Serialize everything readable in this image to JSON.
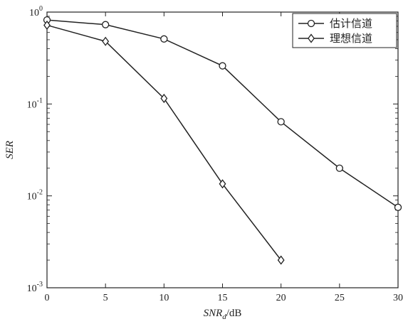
{
  "chart_data": {
    "type": "line",
    "title": "",
    "x_axis": {
      "label_main": "SNR",
      "label_sub": "d",
      "label_unit": "/dB",
      "range": [
        0,
        30
      ],
      "ticks": [
        0,
        5,
        10,
        15,
        20,
        25,
        30
      ],
      "tick_labels": [
        "0",
        "5",
        "10",
        "15",
        "20",
        "25",
        "30"
      ]
    },
    "y_axis": {
      "label": "SER",
      "scale": "log",
      "range": [
        0.001,
        1
      ],
      "ticks": [
        0.001,
        0.01,
        0.1,
        1
      ],
      "tick_labels": [
        {
          "base": "10",
          "exp": "-3"
        },
        {
          "base": "10",
          "exp": "-2"
        },
        {
          "base": "10",
          "exp": "-1"
        },
        {
          "base": "10",
          "exp": "0"
        }
      ]
    },
    "grid": false,
    "legend_position": "top-right",
    "series": [
      {
        "name": "估计信道",
        "marker": "circle",
        "color": "#222222",
        "x": [
          0,
          5,
          10,
          15,
          20,
          25,
          30
        ],
        "y": [
          0.82,
          0.73,
          0.51,
          0.26,
          0.064,
          0.02,
          0.0075
        ]
      },
      {
        "name": "理想信道",
        "marker": "diamond",
        "color": "#222222",
        "x": [
          0,
          5,
          10,
          15,
          20
        ],
        "y": [
          0.72,
          0.48,
          0.115,
          0.0135,
          0.002
        ]
      }
    ]
  }
}
